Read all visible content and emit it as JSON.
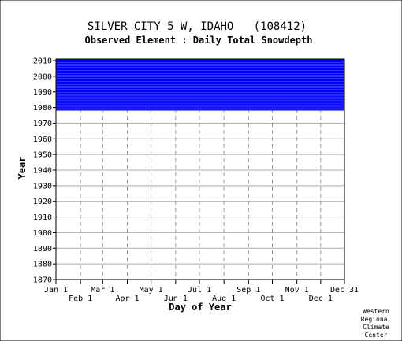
{
  "chart_data": {
    "type": "heatmap",
    "title": "SILVER CITY 5 W, IDAHO   (108412)",
    "subtitle": "Observed Element : Daily Total Snowdepth",
    "xlabel": "Day of Year",
    "ylabel": "Year",
    "x_ticks_top": [
      "Jan 1",
      "Mar 1",
      "May 1",
      "Jul 1",
      "Sep 1",
      "Nov 1",
      "Dec 31"
    ],
    "x_ticks_bottom": [
      "Feb 1",
      "Apr 1",
      "Jun 1",
      "Aug 1",
      "Oct 1",
      "Dec 1"
    ],
    "x_tick_days_top": [
      1,
      60,
      121,
      182,
      244,
      305,
      365
    ],
    "x_tick_days_bottom": [
      32,
      91,
      152,
      213,
      274,
      335
    ],
    "ylim": [
      1870,
      2011
    ],
    "y_ticks": [
      1870,
      1880,
      1890,
      1900,
      1910,
      1920,
      1930,
      1940,
      1950,
      1960,
      1970,
      1980,
      1990,
      2000,
      2010
    ],
    "grid": true,
    "series_color": "#0000ff",
    "observed_periods": [
      {
        "start_year": 1978,
        "end_year": 2010,
        "start_day": 1,
        "end_day": 365
      }
    ],
    "credit": [
      "Western",
      "Regional",
      "Climate",
      "Center"
    ]
  }
}
